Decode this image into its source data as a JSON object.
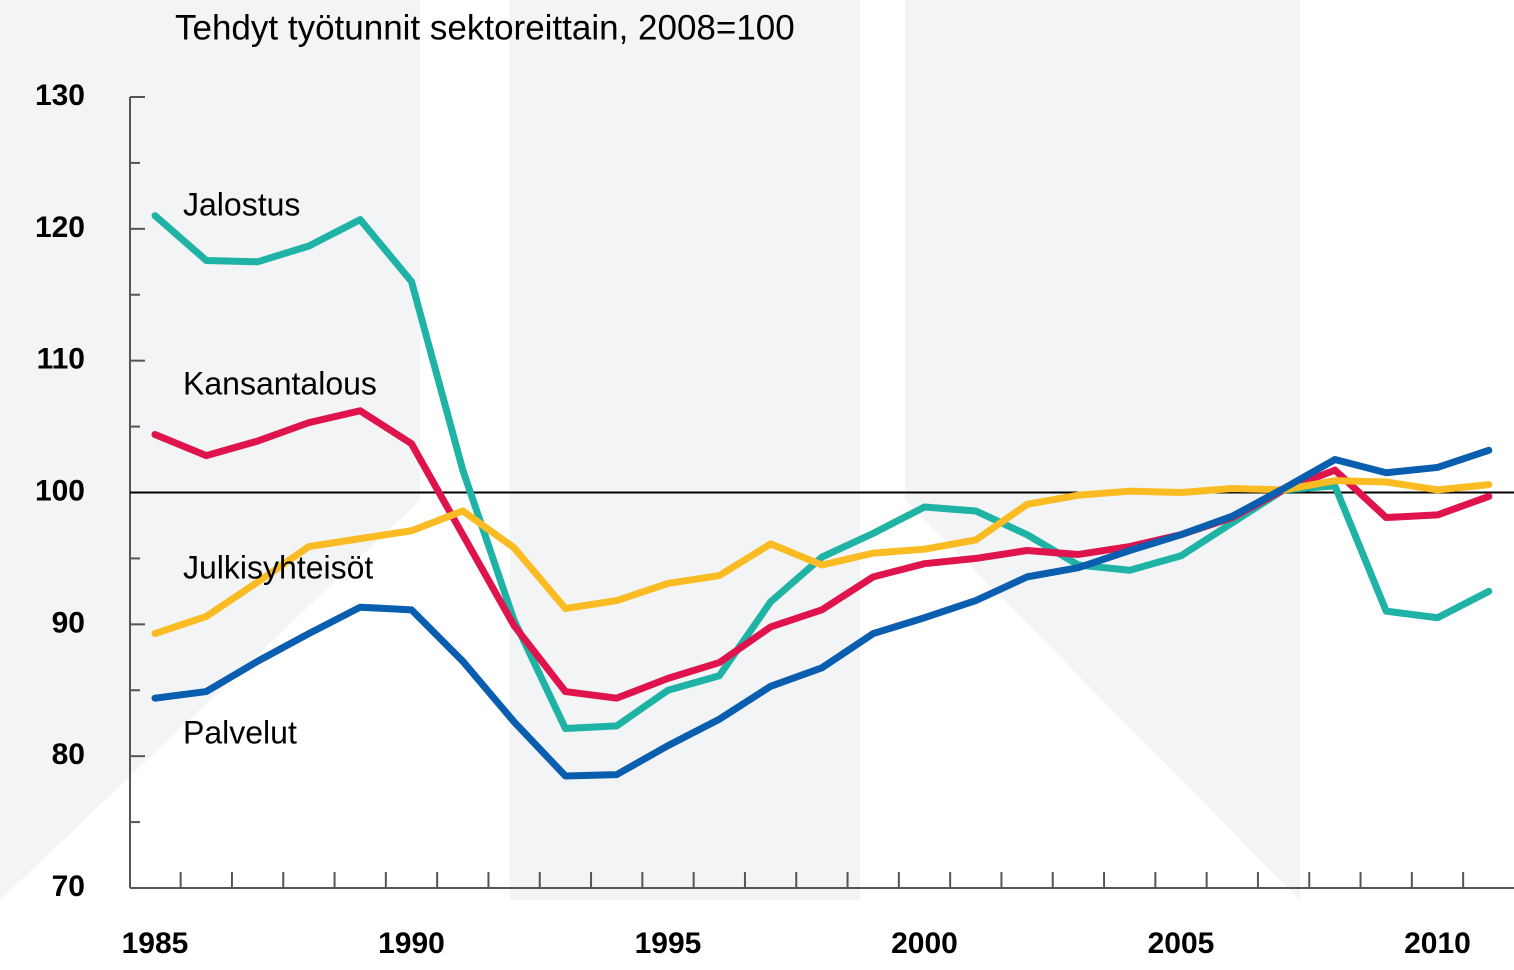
{
  "chart_data": {
    "type": "line",
    "title": "Tehdyt työtunnit sektoreittain, 2008=100",
    "categories": [
      "1985",
      null,
      null,
      null,
      null,
      "1990",
      null,
      null,
      null,
      null,
      "1995",
      null,
      null,
      null,
      null,
      "2000",
      null,
      null,
      null,
      null,
      "2005",
      null,
      null,
      null,
      null,
      "2010",
      null
    ],
    "series": [
      {
        "name": "Jalostus",
        "color": "#1fb3a6",
        "values": [
          121.0,
          117.6,
          117.5,
          118.7,
          120.7,
          116.0,
          101.7,
          90.3,
          82.1,
          82.3,
          85.0,
          86.1,
          91.7,
          95.1,
          96.9,
          98.9,
          98.6,
          96.8,
          94.5,
          94.1,
          95.2,
          97.7,
          100.2,
          100.5,
          91.0,
          90.5,
          92.5
        ]
      },
      {
        "name": "Kansantalous",
        "color": "#e0144c",
        "values": [
          104.4,
          102.8,
          103.9,
          105.3,
          106.2,
          103.7,
          96.8,
          89.9,
          84.9,
          84.4,
          85.9,
          87.1,
          89.8,
          91.1,
          93.6,
          94.6,
          95.0,
          95.6,
          95.3,
          95.9,
          96.8,
          98.1,
          100.2,
          101.7,
          98.1,
          98.3,
          99.7
        ]
      },
      {
        "name": "Julkisyhteisöt",
        "color": "#fbbb22",
        "values": [
          89.3,
          90.6,
          93.2,
          95.9,
          96.5,
          97.1,
          98.6,
          95.8,
          91.2,
          91.8,
          93.1,
          93.7,
          96.1,
          94.5,
          95.4,
          95.7,
          96.4,
          99.1,
          99.8,
          100.1,
          100.0,
          100.3,
          100.2,
          100.9,
          100.8,
          100.2,
          100.6
        ]
      },
      {
        "name": "Palvelut",
        "color": "#0a5eb0",
        "values": [
          84.4,
          84.9,
          87.2,
          89.3,
          91.3,
          91.1,
          87.2,
          82.6,
          78.5,
          78.6,
          80.8,
          82.8,
          85.3,
          86.7,
          89.3,
          90.5,
          91.8,
          93.6,
          94.3,
          95.6,
          96.8,
          98.2,
          100.3,
          102.5,
          101.5,
          101.9,
          103.2
        ]
      }
    ],
    "ylim": [
      70,
      130
    ],
    "yticks": [
      70,
      80,
      90,
      100,
      110,
      120,
      130
    ],
    "yminorticks": [
      75,
      85,
      95,
      105,
      115,
      125
    ],
    "hline": 100
  }
}
